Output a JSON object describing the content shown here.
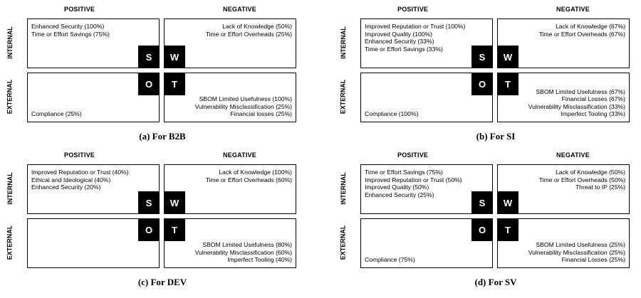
{
  "headers": {
    "positive": "POSITIVE",
    "negative": "NEGATIVE",
    "internal": "INTERNAL",
    "external": "EXTERNAL"
  },
  "letters": {
    "s": "S",
    "w": "W",
    "o": "O",
    "t": "T"
  },
  "panels": [
    {
      "caption": "(a) For B2B",
      "strengths": [
        "Enhanced Security (100%)",
        "Time or Effort Savings (75%)"
      ],
      "weaknesses": [
        "Lack of Knowledge (50%)",
        "Time or Effort Overheads (25%)"
      ],
      "opportunities": [
        "Compliance (25%)"
      ],
      "threats": [
        "SBOM Limited Usefulness (100%)",
        "Vulnerability Misclassification (25%)",
        "Financial losses (25%)"
      ]
    },
    {
      "caption": "(b) For SI",
      "strengths": [
        "Improved Reputation or Trust (100%)",
        "Improved Quality (100%)",
        "Enhanced Security (33%)",
        "Time or Effort Savings (33%)"
      ],
      "weaknesses": [
        "Lack of Knowledge (67%)",
        "Time or Effort Overheads (67%)"
      ],
      "opportunities": [
        "Compliance (100%)"
      ],
      "threats": [
        "SBOM Limited Usefulness (67%)",
        "Financial Losses (67%)",
        "Vulnerability Misclassification (33%)",
        "Imperfect Tooling (33%)"
      ]
    },
    {
      "caption": "(c) For DEV",
      "strengths": [
        "Improved Reputation or Trust (40%)",
        "Ethical and Ideological (40%)",
        "Enhanced Security (20%)"
      ],
      "weaknesses": [
        "Lack of Knowledge (100%)",
        "Time or Effort Overheads (60%)"
      ],
      "opportunities": [],
      "threats": [
        "SBOM Limited Usefulness (80%)",
        "Vulnerability Misclassification (60%)",
        "Imperfect Tooling (40%)"
      ]
    },
    {
      "caption": "(d) For SV",
      "strengths": [
        "Time or Effort Savings (75%)",
        "Improved Reputation or Trust (50%)",
        "Improved Quality (50%)",
        "Enhanced Security (25%)"
      ],
      "weaknesses": [
        "Lack of Knowledge (50%)",
        "Time or Effort Overheads (50%)",
        "Threat to IP (25%)"
      ],
      "opportunities": [
        "Compliance (75%)"
      ],
      "threats": [
        "SBOM Limited Usefulness (25%)",
        "Vulnerability Misclassification (25%)",
        "Financial Losses (25%)"
      ]
    }
  ]
}
